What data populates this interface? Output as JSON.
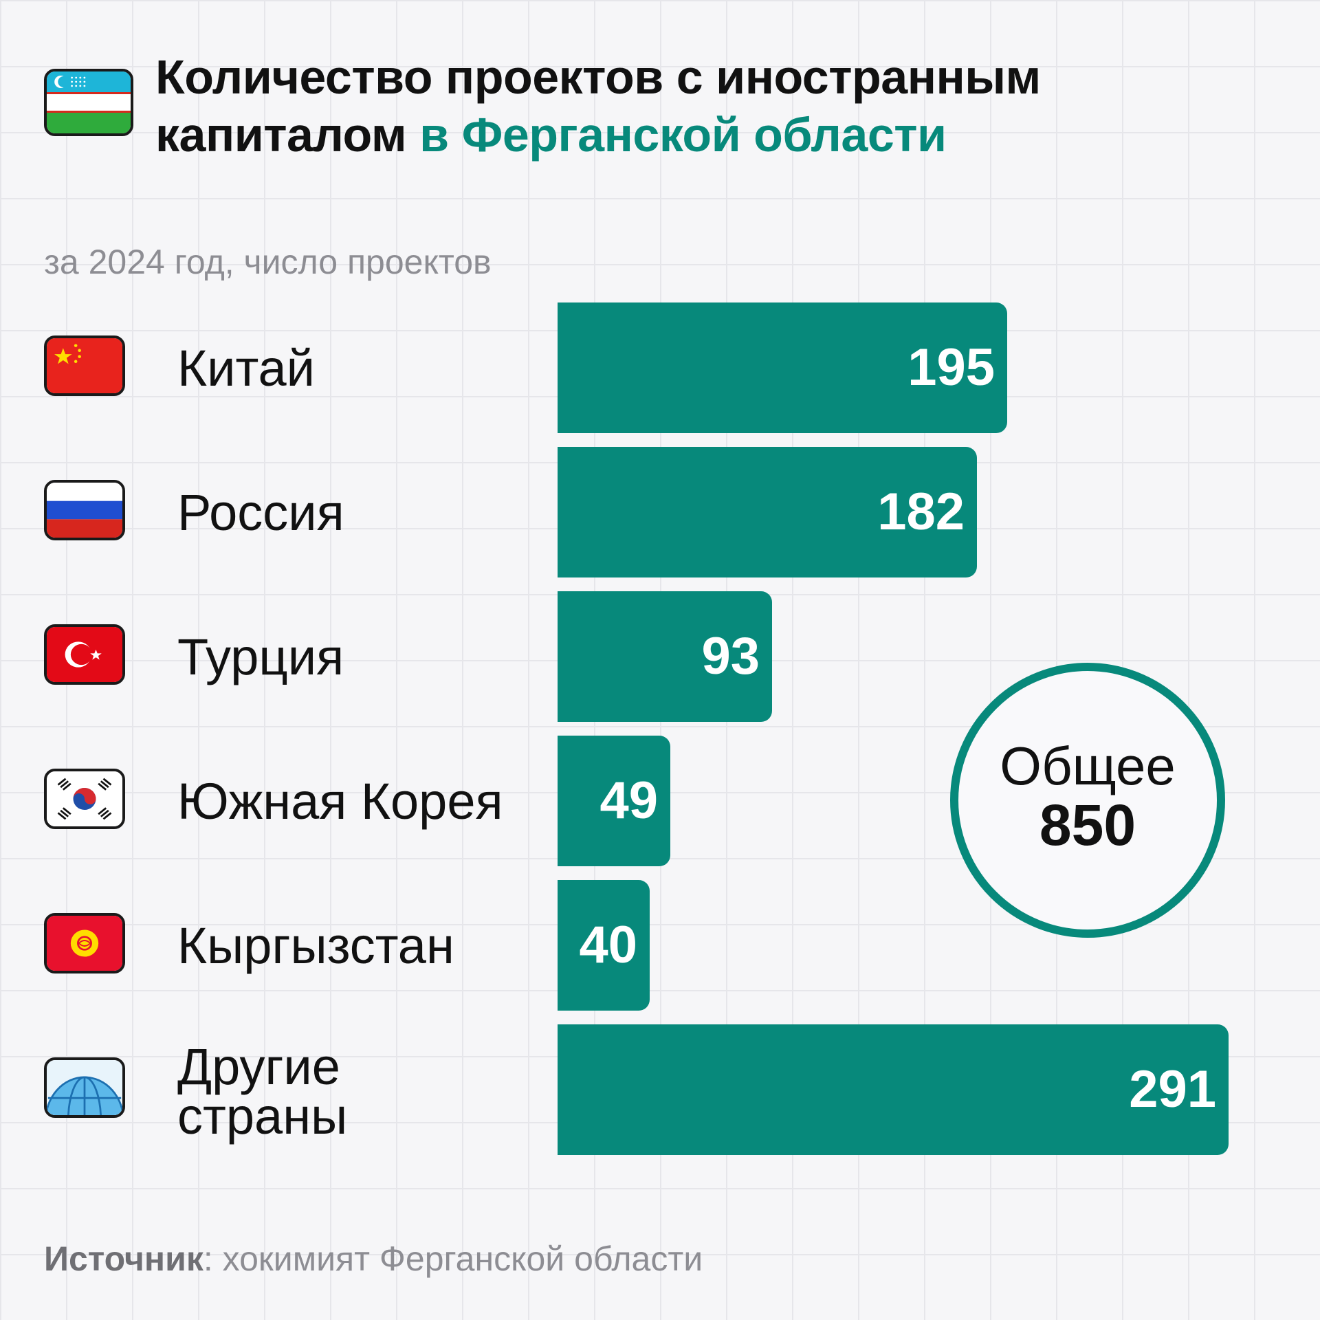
{
  "title": {
    "line1": "Количество проектов с иностранным",
    "line2_plain": "капиталом ",
    "line2_accent": "в Ферганской области"
  },
  "subtitle": "за 2024 год, число проектов",
  "rows": [
    {
      "label": "Китай",
      "flag_icon": "china-flag-icon"
    },
    {
      "label": "Россия",
      "flag_icon": "russia-flag-icon"
    },
    {
      "label": "Турция",
      "flag_icon": "turkey-flag-icon"
    },
    {
      "label": "Южная Корея",
      "flag_icon": "south-korea-flag-icon"
    },
    {
      "label": "Кыргызстан",
      "flag_icon": "kyrgyzstan-flag-icon"
    },
    {
      "label_line1": "Другие",
      "label_line2": "страны",
      "flag_icon": "globe-icon"
    }
  ],
  "total": {
    "label": "Общее",
    "value": "850"
  },
  "source": {
    "label": "Источник",
    "text": ": хокимият Ферганской области"
  },
  "colors": {
    "accent": "#07897b",
    "background": "#f6f6f8",
    "muted": "#8d8d93"
  },
  "chart_data": {
    "type": "bar",
    "orientation": "horizontal",
    "title": "Количество проектов с иностранным капиталом в Ферганской области",
    "subtitle": "за 2024 год, число проектов",
    "categories": [
      "Китай",
      "Россия",
      "Турция",
      "Южная Корея",
      "Кыргызстан",
      "Другие страны"
    ],
    "values": [
      195,
      182,
      93,
      49,
      40,
      291
    ],
    "value_labels": [
      "195",
      "182",
      "93",
      "49",
      "40",
      "291"
    ],
    "xlim": [
      0,
      291
    ],
    "grid": false,
    "legend": "none"
  }
}
